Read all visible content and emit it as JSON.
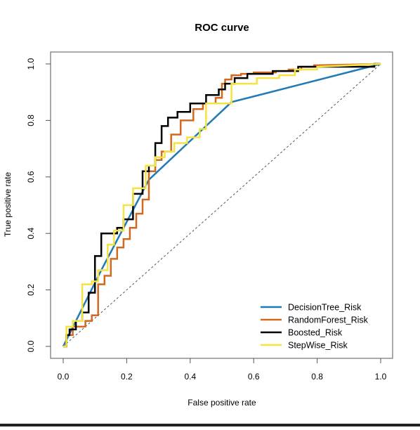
{
  "chart_data": {
    "type": "line",
    "title": "ROC curve",
    "xlabel": "False positive rate",
    "ylabel": "True positive rate",
    "xlim": [
      0,
      1
    ],
    "ylim": [
      0,
      1
    ],
    "x_ticks": [
      "0.0",
      "0.2",
      "0.4",
      "0.6",
      "0.8",
      "1.0"
    ],
    "y_ticks": [
      "0.0",
      "0.2",
      "0.4",
      "0.6",
      "0.8",
      "1.0"
    ],
    "grid": false,
    "legend_position": "bottom-right",
    "diagonal": {
      "x": [
        0,
        1
      ],
      "y": [
        0,
        1
      ],
      "style": "dashed",
      "color": "#555555"
    },
    "series": [
      {
        "name": "DecisionTree_Risk",
        "color": "#1f7ab8",
        "x": [
          0.0,
          0.12,
          0.27,
          0.53,
          1.0
        ],
        "y": [
          0.0,
          0.27,
          0.59,
          0.865,
          1.0
        ]
      },
      {
        "name": "RandomForest_Risk",
        "color": "#d2691e",
        "x": [
          0.0,
          0.01,
          0.01,
          0.03,
          0.03,
          0.07,
          0.07,
          0.09,
          0.09,
          0.11,
          0.11,
          0.13,
          0.13,
          0.15,
          0.15,
          0.17,
          0.17,
          0.19,
          0.19,
          0.21,
          0.21,
          0.23,
          0.23,
          0.25,
          0.25,
          0.27,
          0.27,
          0.29,
          0.29,
          0.31,
          0.31,
          0.34,
          0.34,
          0.37,
          0.37,
          0.41,
          0.41,
          0.44,
          0.44,
          0.48,
          0.48,
          0.5,
          0.5,
          0.51,
          0.51,
          0.53,
          0.53,
          0.56,
          0.56,
          0.6,
          0.6,
          0.67,
          0.67,
          0.71,
          0.71,
          0.75,
          0.75,
          0.79,
          0.79,
          1.0
        ],
        "y": [
          0.0,
          0.0,
          0.04,
          0.04,
          0.07,
          0.07,
          0.09,
          0.09,
          0.11,
          0.11,
          0.22,
          0.22,
          0.25,
          0.25,
          0.31,
          0.31,
          0.35,
          0.35,
          0.38,
          0.38,
          0.42,
          0.42,
          0.47,
          0.47,
          0.52,
          0.52,
          0.62,
          0.62,
          0.66,
          0.66,
          0.69,
          0.69,
          0.75,
          0.75,
          0.8,
          0.8,
          0.84,
          0.84,
          0.86,
          0.86,
          0.88,
          0.88,
          0.93,
          0.93,
          0.945,
          0.945,
          0.96,
          0.96,
          0.965,
          0.965,
          0.97,
          0.97,
          0.975,
          0.975,
          0.98,
          0.98,
          0.99,
          0.99,
          0.995,
          1.0
        ]
      },
      {
        "name": "Boosted_Risk",
        "color": "#000000",
        "x": [
          0.0,
          0.01,
          0.01,
          0.02,
          0.02,
          0.04,
          0.04,
          0.06,
          0.06,
          0.08,
          0.08,
          0.1,
          0.1,
          0.12,
          0.12,
          0.17,
          0.17,
          0.19,
          0.19,
          0.22,
          0.22,
          0.25,
          0.25,
          0.27,
          0.27,
          0.29,
          0.29,
          0.31,
          0.31,
          0.33,
          0.33,
          0.36,
          0.36,
          0.4,
          0.4,
          0.45,
          0.45,
          0.49,
          0.49,
          0.51,
          0.51,
          0.54,
          0.54,
          0.58,
          0.58,
          0.66,
          0.66,
          0.74,
          0.74,
          0.98,
          0.98,
          1.0
        ],
        "y": [
          0.0,
          0.0,
          0.04,
          0.04,
          0.06,
          0.06,
          0.09,
          0.09,
          0.12,
          0.12,
          0.19,
          0.19,
          0.32,
          0.32,
          0.4,
          0.4,
          0.42,
          0.42,
          0.45,
          0.45,
          0.54,
          0.54,
          0.62,
          0.62,
          0.64,
          0.64,
          0.72,
          0.72,
          0.78,
          0.78,
          0.81,
          0.81,
          0.83,
          0.83,
          0.86,
          0.86,
          0.89,
          0.89,
          0.91,
          0.91,
          0.93,
          0.93,
          0.95,
          0.95,
          0.965,
          0.965,
          0.975,
          0.975,
          0.99,
          0.99,
          1.0,
          1.0
        ]
      },
      {
        "name": "StepWise_Risk",
        "color": "#f5e342",
        "x": [
          0.0,
          0.01,
          0.01,
          0.03,
          0.03,
          0.06,
          0.06,
          0.09,
          0.09,
          0.11,
          0.11,
          0.14,
          0.14,
          0.16,
          0.16,
          0.19,
          0.19,
          0.22,
          0.22,
          0.26,
          0.26,
          0.29,
          0.29,
          0.32,
          0.32,
          0.35,
          0.35,
          0.39,
          0.39,
          0.43,
          0.43,
          0.45,
          0.45,
          0.53,
          0.53,
          0.61,
          0.61,
          0.68,
          0.68,
          0.73,
          0.73,
          0.8,
          0.8,
          1.0
        ],
        "y": [
          0.0,
          0.0,
          0.07,
          0.07,
          0.09,
          0.09,
          0.22,
          0.22,
          0.23,
          0.23,
          0.27,
          0.27,
          0.36,
          0.36,
          0.41,
          0.41,
          0.5,
          0.5,
          0.56,
          0.56,
          0.64,
          0.64,
          0.67,
          0.67,
          0.69,
          0.69,
          0.72,
          0.72,
          0.74,
          0.74,
          0.77,
          0.77,
          0.86,
          0.86,
          0.93,
          0.93,
          0.95,
          0.95,
          0.96,
          0.96,
          0.98,
          0.98,
          0.99,
          1.0
        ]
      }
    ]
  }
}
